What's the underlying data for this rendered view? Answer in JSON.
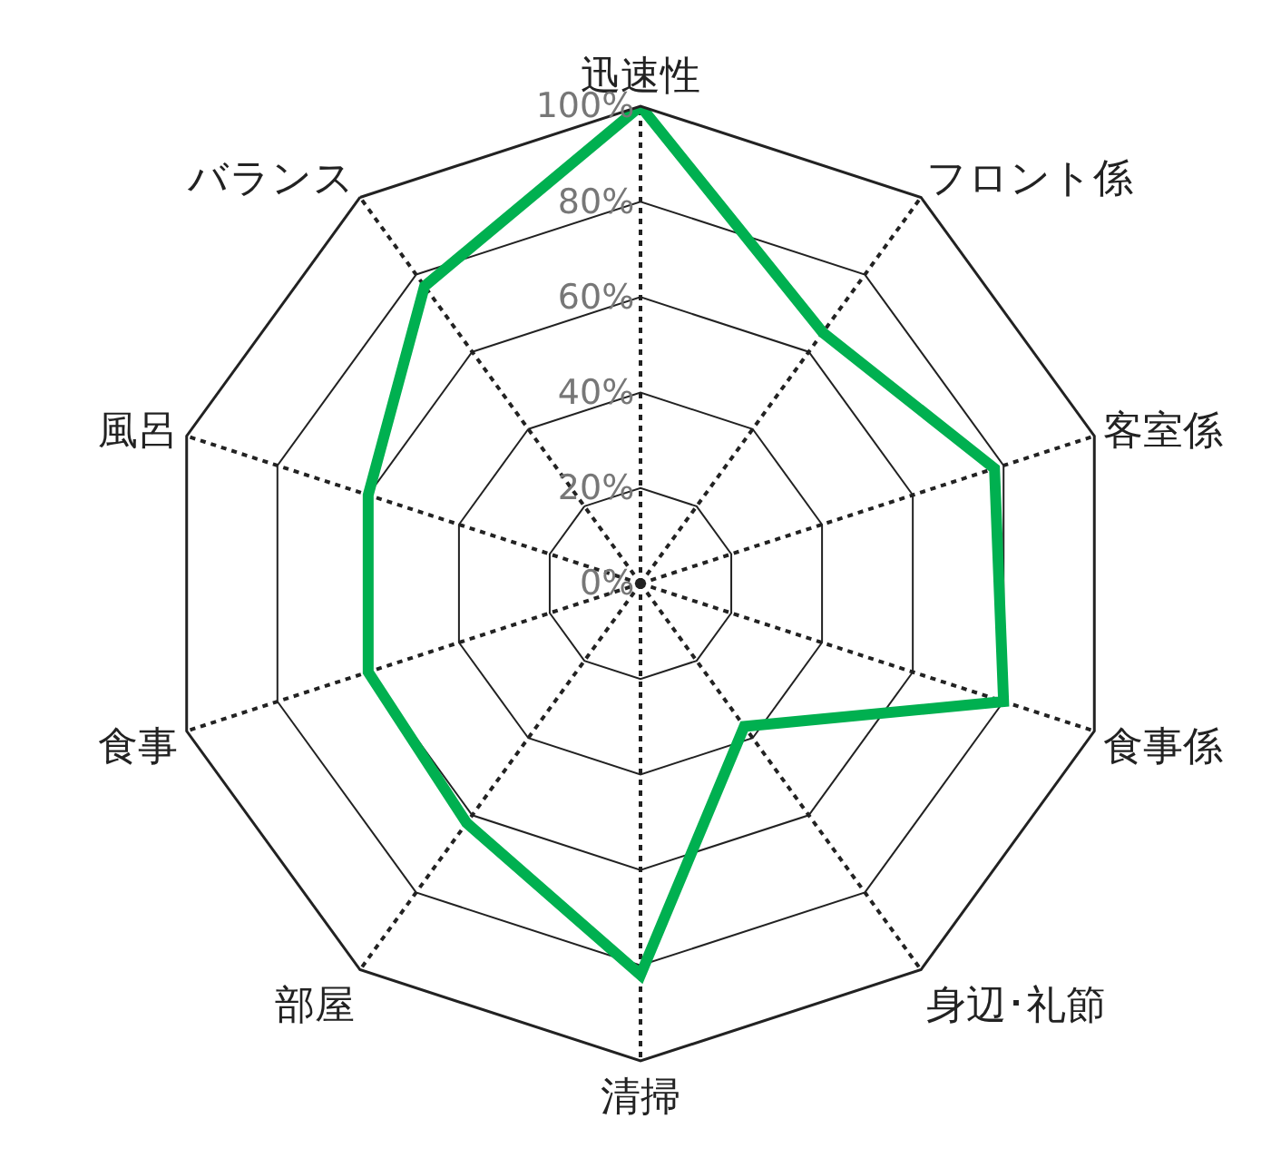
{
  "chart_data": {
    "type": "radar",
    "categories": [
      "迅速性",
      "フロント係",
      "客室係",
      "食事係",
      "身辺･礼節",
      "清掃",
      "部屋",
      "食事",
      "風呂",
      "バランス"
    ],
    "series": [
      {
        "color": "#00b050",
        "values": [
          100,
          65,
          78,
          80,
          37,
          82,
          62,
          60,
          60,
          77
        ]
      }
    ],
    "ylim": [
      0,
      100
    ],
    "yticks": [
      {
        "value": 0,
        "label": "0%"
      },
      {
        "value": 20,
        "label": "20%"
      },
      {
        "value": 40,
        "label": "40%"
      },
      {
        "value": 60,
        "label": "60%"
      },
      {
        "value": 80,
        "label": "80%"
      },
      {
        "value": 100,
        "label": "100%"
      }
    ],
    "marker": "none",
    "line_style": "solid",
    "grid": true
  }
}
